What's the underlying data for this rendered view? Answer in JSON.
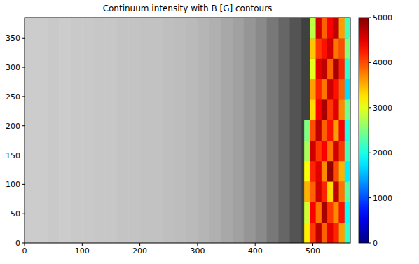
{
  "chart_data": {
    "type": "heatmap",
    "title": "Continuum intensity with B [G] contours",
    "xlim": [
      0,
      565
    ],
    "ylim": [
      0,
      385
    ],
    "xticks": [
      0,
      100,
      200,
      300,
      400,
      500
    ],
    "yticks": [
      0,
      50,
      100,
      150,
      200,
      250,
      300,
      350
    ],
    "intensity_bins": [
      0,
      20,
      40,
      60,
      80,
      100,
      120,
      140,
      160,
      180,
      200,
      220,
      240,
      260,
      280,
      300,
      320,
      340,
      360,
      380,
      400,
      420,
      440,
      460,
      480,
      500,
      520,
      540,
      560
    ],
    "intensity": [
      0.8,
      0.8,
      0.79,
      0.8,
      0.79,
      0.79,
      0.78,
      0.78,
      0.77,
      0.77,
      0.76,
      0.76,
      0.75,
      0.74,
      0.73,
      0.71,
      0.69,
      0.66,
      0.63,
      0.59,
      0.54,
      0.47,
      0.4,
      0.33,
      0.25,
      0.22,
      0.2,
      0.18
    ],
    "x_bins": [
      485,
      495,
      505,
      515,
      525,
      535,
      545,
      555,
      565
    ],
    "y_bins": [
      0,
      35,
      70,
      105,
      140,
      175,
      210,
      245,
      280,
      315,
      350,
      385
    ],
    "values": [
      [
        3200,
        4100,
        4700,
        3900,
        4500,
        4200,
        3600,
        2100
      ],
      [
        2900,
        4400,
        3800,
        4800,
        4100,
        3700,
        4300,
        1900
      ],
      [
        3500,
        3900,
        4600,
        4200,
        3300,
        4700,
        3800,
        2300
      ],
      [
        3100,
        4200,
        4500,
        3700,
        4900,
        4000,
        3500,
        1800
      ],
      [
        2700,
        4600,
        4100,
        4400,
        3800,
        4600,
        4100,
        2200
      ],
      [
        2500,
        4000,
        4700,
        3900,
        4300,
        3600,
        4400,
        2000
      ],
      [
        null,
        3300,
        4400,
        4800,
        4100,
        4500,
        3700,
        2400
      ],
      [
        null,
        3600,
        4200,
        3800,
        4600,
        4300,
        3900,
        1700
      ],
      [
        null,
        3000,
        4500,
        4700,
        3900,
        4800,
        4200,
        2100
      ],
      [
        null,
        3400,
        4100,
        4300,
        4600,
        3800,
        4000,
        2500
      ],
      [
        null,
        2800,
        4600,
        3900,
        4400,
        4700,
        3600,
        2200
      ]
    ],
    "colorbar": {
      "range": [
        0,
        5000
      ],
      "ticks": [
        0,
        1000,
        2000,
        3000,
        4000,
        5000
      ]
    }
  }
}
